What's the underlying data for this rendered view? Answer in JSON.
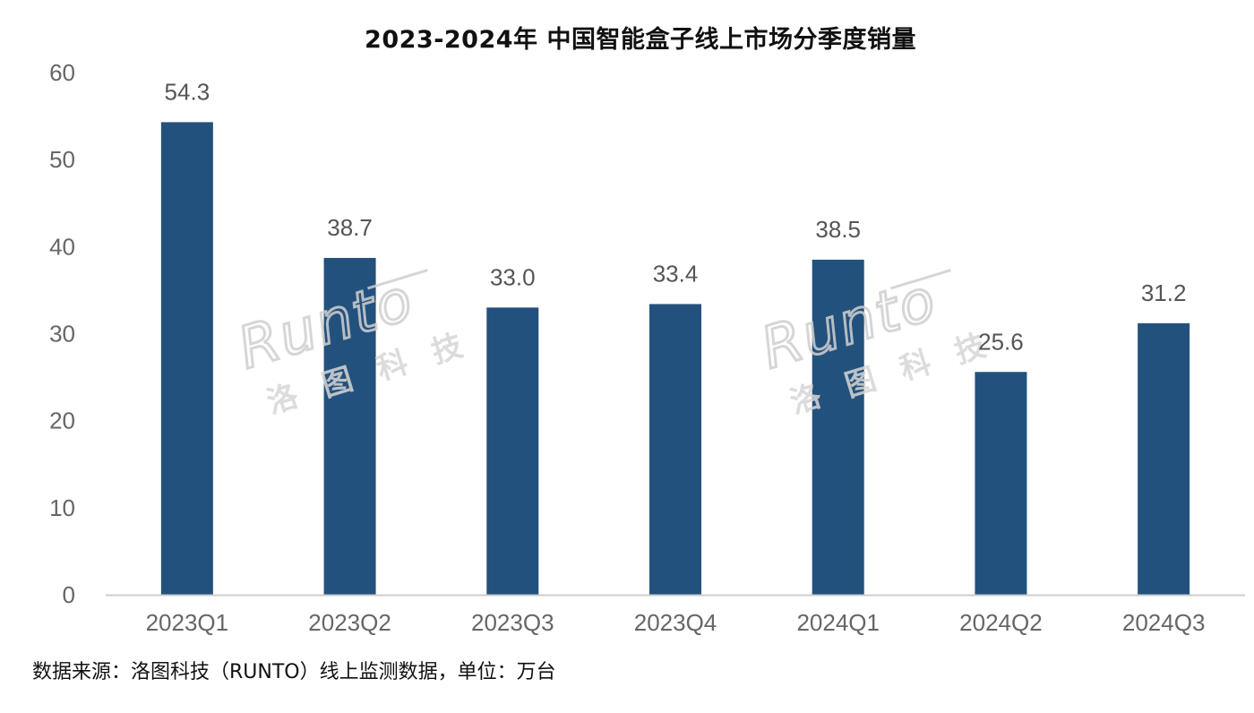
{
  "chart_data": {
    "type": "bar",
    "title": "2023-2024年 中国智能盒子线上市场分季度销量",
    "xlabel": "",
    "ylabel": "",
    "categories": [
      "2023Q1",
      "2023Q2",
      "2023Q3",
      "2023Q4",
      "2024Q1",
      "2024Q2",
      "2024Q3"
    ],
    "values": [
      54.3,
      38.7,
      33.0,
      33.4,
      38.5,
      25.6,
      31.2
    ],
    "data_labels": [
      "54.3",
      "38.7",
      "33.0",
      "33.4",
      "38.5",
      "25.6",
      "31.2"
    ],
    "ylim": [
      0,
      60
    ],
    "yticks": [
      "0",
      "10",
      "20",
      "30",
      "40",
      "50",
      "60"
    ],
    "grid": false,
    "legend": "none",
    "bar_color": "#23517d",
    "axis_color": "#cccccc"
  },
  "watermark": {
    "latin": "Runto",
    "cjk": "洛图科技",
    "color": "#d0d0d0"
  },
  "source_note": "数据来源：洛图科技（RUNTO）线上监测数据，单位：万台"
}
